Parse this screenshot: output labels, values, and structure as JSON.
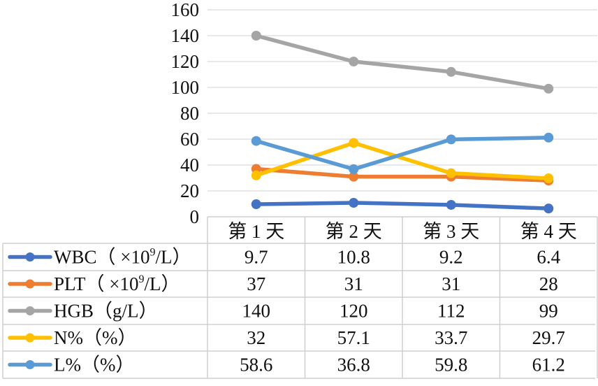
{
  "chart_data": {
    "type": "line",
    "categories": [
      "第 1 天",
      "第 2 天",
      "第 3 天",
      "第 4 天"
    ],
    "ylim": [
      0,
      160
    ],
    "yticks": [
      0,
      20,
      40,
      60,
      80,
      100,
      120,
      140,
      160
    ],
    "grid": true,
    "legend_placement": "data-table-left",
    "series": [
      {
        "name": "WBC（ ×10⁹/L）",
        "name_main": "WBC（ ×10",
        "name_sup": "9",
        "name_tail": "/L）",
        "color": "#4472C4",
        "values": [
          9.7,
          10.8,
          9.2,
          6.4
        ],
        "labels": [
          "9.7",
          "10.8",
          "9.2",
          "6.4"
        ]
      },
      {
        "name": "PLT（ ×10⁹/L）",
        "name_main": "PLT（ ×10",
        "name_sup": "9",
        "name_tail": "/L）",
        "color": "#ED7D31",
        "values": [
          37,
          31,
          31,
          28
        ],
        "labels": [
          "37",
          "31",
          "31",
          "28"
        ]
      },
      {
        "name": "HGB（g/L）",
        "name_main": "HGB（g/L）",
        "name_sup": "",
        "name_tail": "",
        "color": "#A5A5A5",
        "values": [
          140,
          120,
          112,
          99
        ],
        "labels": [
          "140",
          "120",
          "112",
          "99"
        ]
      },
      {
        "name": "N%（%）",
        "name_main": "N%（%）",
        "name_sup": "",
        "name_tail": "",
        "color": "#FFC000",
        "values": [
          32,
          57.1,
          33.7,
          29.7
        ],
        "labels": [
          "32",
          "57.1",
          "33.7",
          "29.7"
        ]
      },
      {
        "name": "L%（%）",
        "name_main": "L%（%）",
        "name_sup": "",
        "name_tail": "",
        "color": "#5B9BD5",
        "values": [
          58.6,
          36.8,
          59.8,
          61.2
        ],
        "labels": [
          "58.6",
          "36.8",
          "59.8",
          "61.2"
        ]
      }
    ]
  }
}
